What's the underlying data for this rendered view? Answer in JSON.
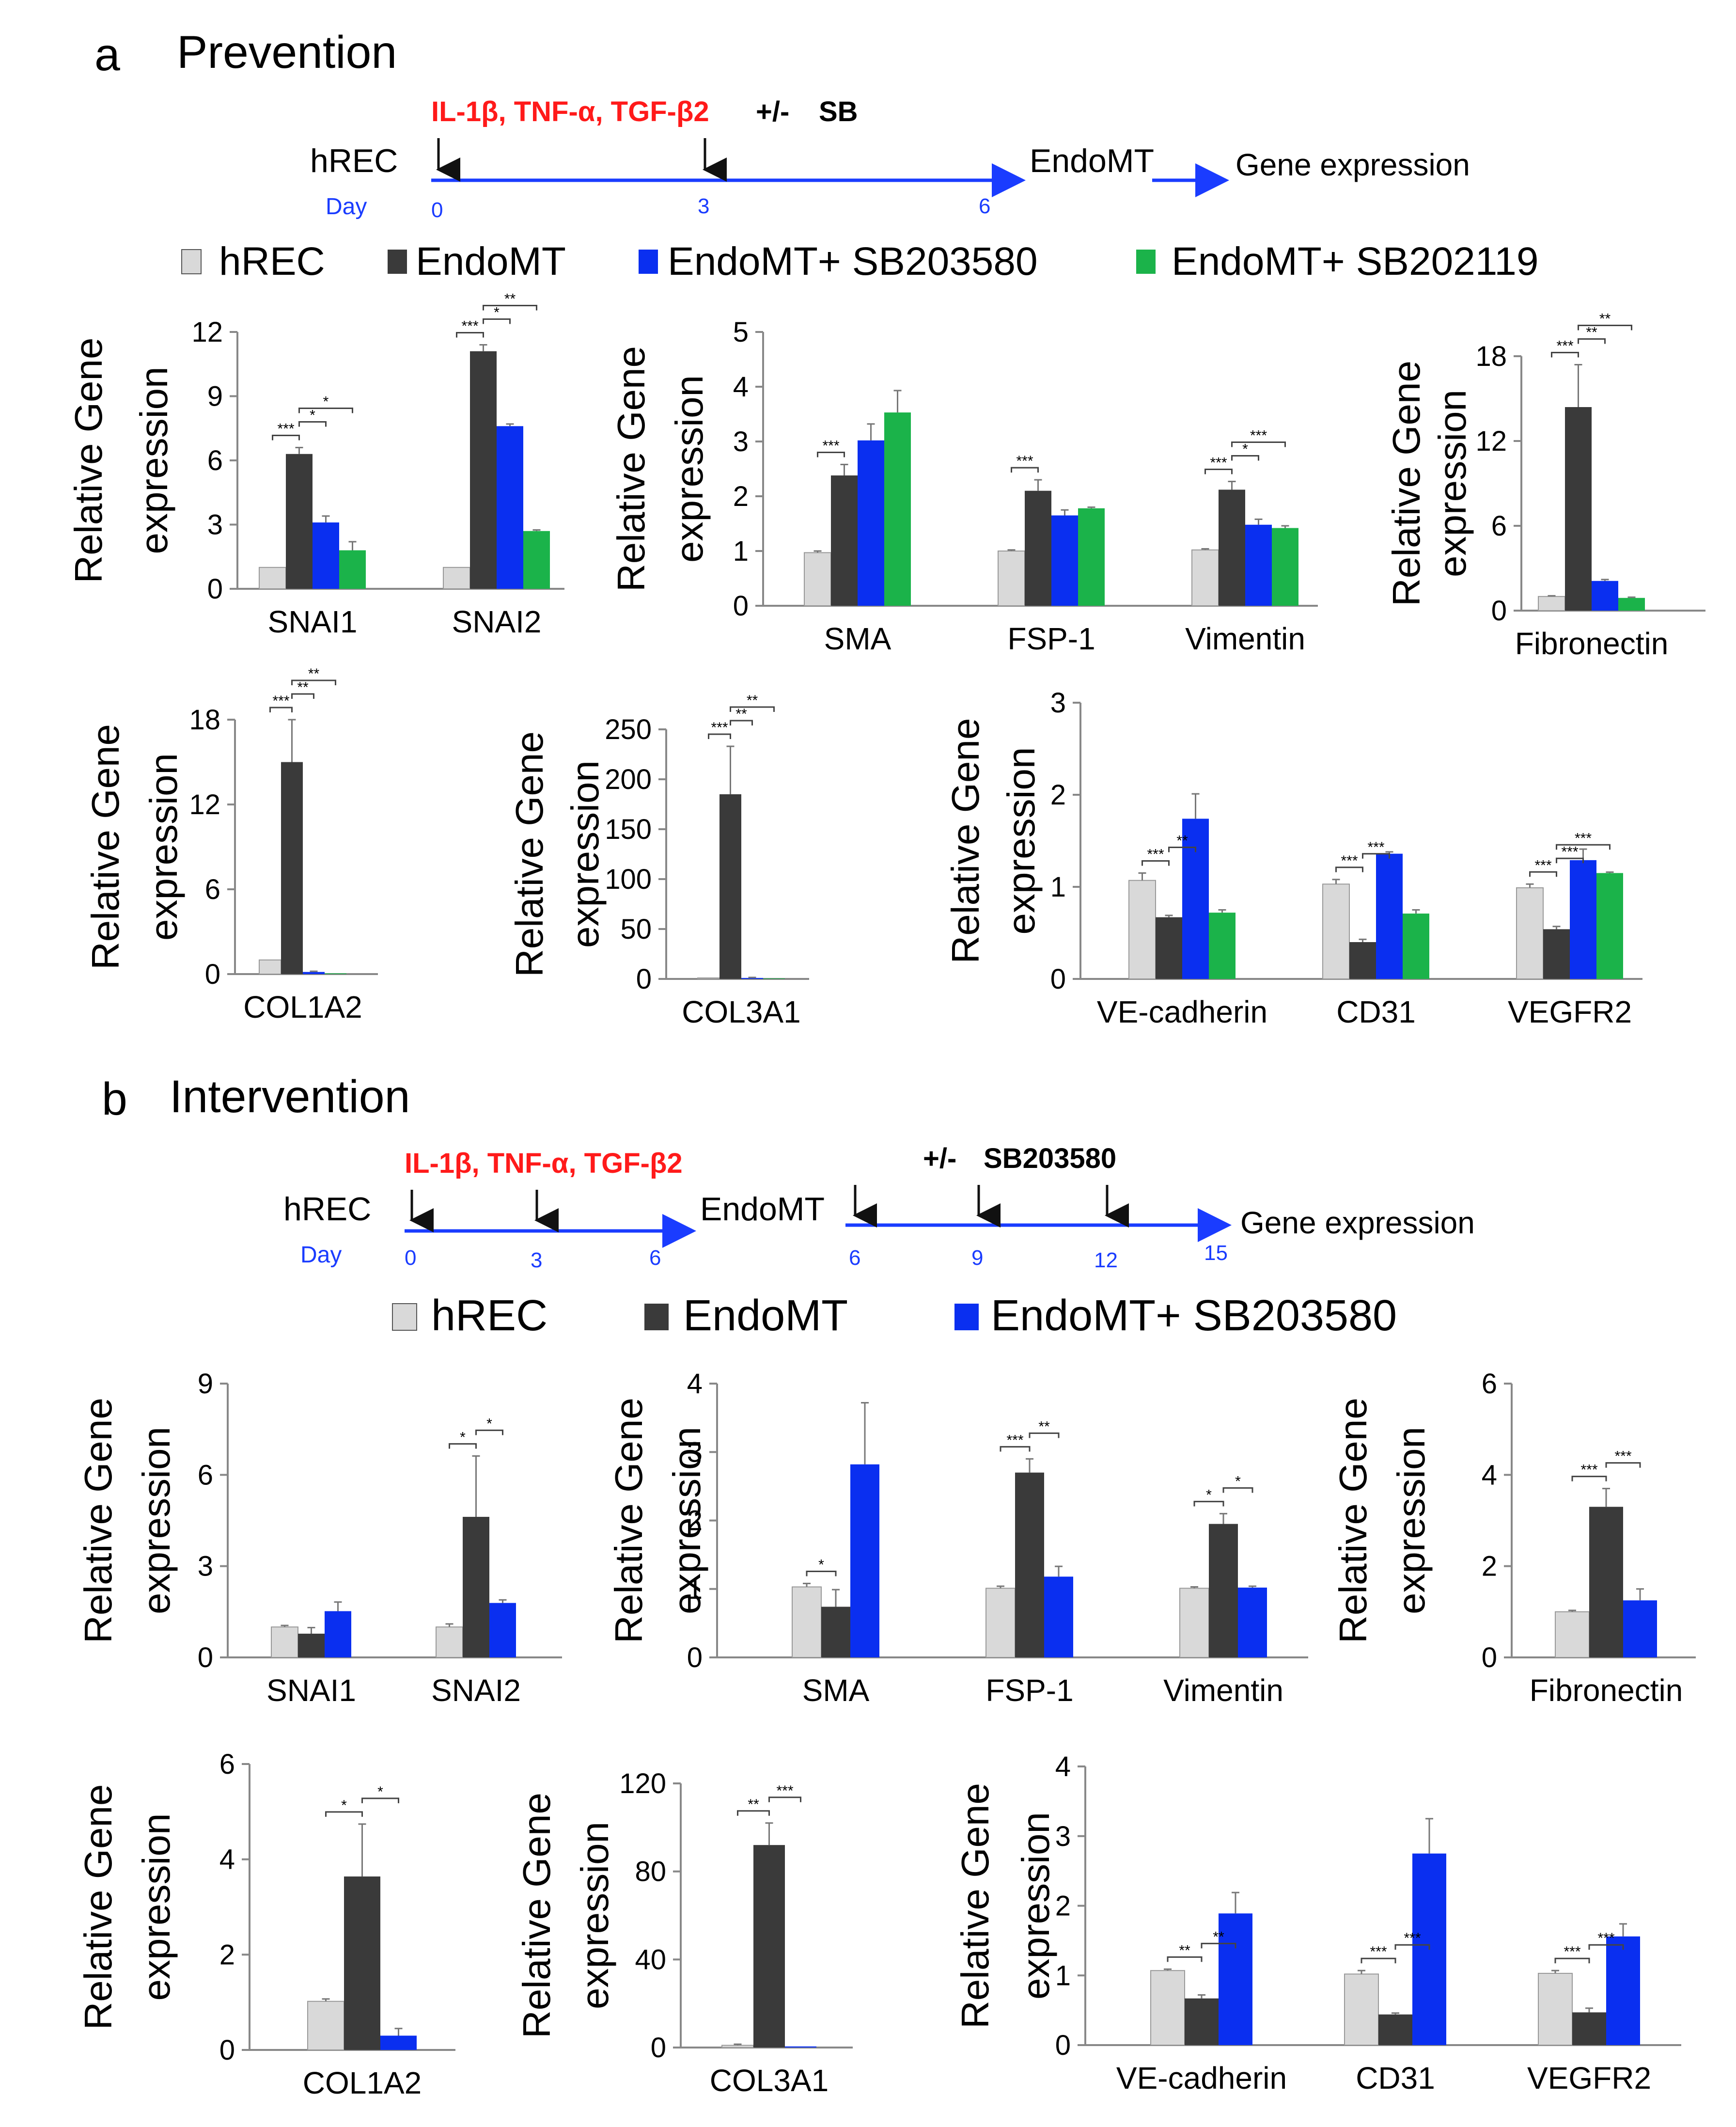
{
  "colors": {
    "hrec": "#d9d9d9",
    "endomt": "#3a3a3a",
    "sb203580": "#0a2ff0",
    "sb202119": "#1bb34a",
    "red": "#ff1a1a",
    "blue": "#1a3cff"
  },
  "panel_a": {
    "letter": "a",
    "title": "Prevention",
    "timeline": {
      "cell": "hREC",
      "day_label": "Day",
      "treatment": "IL-1β, TNF-α, TGF-β2",
      "plusminus": "+/-",
      "drug": "SB",
      "stage": "EndoMT",
      "readout": "Gene expression",
      "days": [
        "0",
        "3",
        "6"
      ]
    },
    "legend": [
      "hREC",
      "EndoMT",
      "EndoMT+ SB203580",
      "EndoMT+ SB202119"
    ]
  },
  "panel_b": {
    "letter": "b",
    "title": "Intervention",
    "timeline": {
      "cell": "hREC",
      "day_label": "Day",
      "treatment": "IL-1β, TNF-α, TGF-β2",
      "plusminus": "+/-",
      "drug": "SB203580",
      "stage": "EndoMT",
      "readout": "Gene expression",
      "days": [
        "0",
        "3",
        "6",
        "6",
        "9",
        "12",
        "15"
      ]
    },
    "legend": [
      "hREC",
      "EndoMT",
      "EndoMT+ SB203580"
    ]
  },
  "chart_data": [
    {
      "id": "a1",
      "type": "bar",
      "panel": "a",
      "ylabel": "Relative Gene expression",
      "ylim": [
        0,
        12
      ],
      "yticks": [
        0,
        3,
        6,
        9,
        12
      ],
      "categories": [
        "SNAI1",
        "SNAI2"
      ],
      "series": [
        {
          "name": "hREC",
          "values": [
            1.0,
            1.0
          ],
          "err": [
            0,
            0
          ]
        },
        {
          "name": "EndoMT",
          "values": [
            6.3,
            11.1
          ],
          "err": [
            0.3,
            0.3
          ]
        },
        {
          "name": "EndoMT+ SB203580",
          "values": [
            3.1,
            7.6
          ],
          "err": [
            0.3,
            0.1
          ]
        },
        {
          "name": "EndoMT+ SB202119",
          "values": [
            1.8,
            2.7
          ],
          "err": [
            0.4,
            0.05
          ]
        }
      ],
      "sig": [
        [
          "***",
          "*",
          "*"
        ],
        [
          "***",
          "*",
          "**"
        ]
      ]
    },
    {
      "id": "a2",
      "type": "bar",
      "panel": "a",
      "ylabel": "Relative Gene expression",
      "ylim": [
        0,
        5
      ],
      "yticks": [
        0,
        1,
        2,
        3,
        4,
        5
      ],
      "categories": [
        "SMA",
        "FSP-1",
        "Vimentin"
      ],
      "series": [
        {
          "name": "hREC",
          "values": [
            0.97,
            1.0,
            1.02
          ],
          "err": [
            0.03,
            0.02,
            0.02
          ]
        },
        {
          "name": "EndoMT",
          "values": [
            2.38,
            2.1,
            2.12
          ],
          "err": [
            0.2,
            0.2,
            0.15
          ]
        },
        {
          "name": "EndoMT+ SB203580",
          "values": [
            3.02,
            1.65,
            1.48
          ],
          "err": [
            0.3,
            0.1,
            0.1
          ]
        },
        {
          "name": "EndoMT+ SB202119",
          "values": [
            3.53,
            1.78,
            1.42
          ],
          "err": [
            0.4,
            0.02,
            0.04
          ]
        }
      ],
      "sig": [
        [
          "***"
        ],
        [
          "***"
        ],
        [
          "***",
          "*",
          "***"
        ]
      ]
    },
    {
      "id": "a3",
      "type": "bar",
      "panel": "a",
      "ylabel": "Relative Gene expression",
      "ylim": [
        0,
        18
      ],
      "yticks": [
        0,
        6,
        12,
        18
      ],
      "categories": [
        "Fibronectin"
      ],
      "series": [
        {
          "name": "hREC",
          "values": [
            1.0
          ],
          "err": [
            0.05
          ]
        },
        {
          "name": "EndoMT",
          "values": [
            14.4
          ],
          "err": [
            3.0
          ]
        },
        {
          "name": "EndoMT+ SB203580",
          "values": [
            2.1
          ],
          "err": [
            0.1
          ]
        },
        {
          "name": "EndoMT+ SB202119",
          "values": [
            0.9
          ],
          "err": [
            0.05
          ]
        }
      ],
      "sig": [
        [
          "***",
          "**",
          "**"
        ]
      ]
    },
    {
      "id": "a4",
      "type": "bar",
      "panel": "a",
      "ylabel": "Relative Gene expression",
      "ylim": [
        0,
        18
      ],
      "yticks": [
        0,
        6,
        12,
        18
      ],
      "categories": [
        "COL1A2"
      ],
      "series": [
        {
          "name": "hREC",
          "values": [
            1.0
          ],
          "err": [
            0
          ]
        },
        {
          "name": "EndoMT",
          "values": [
            15.0
          ],
          "err": [
            3.0
          ]
        },
        {
          "name": "EndoMT+ SB203580",
          "values": [
            0.15
          ],
          "err": [
            0.05
          ]
        },
        {
          "name": "EndoMT+ SB202119",
          "values": [
            0.05
          ],
          "err": [
            0
          ]
        }
      ],
      "sig": [
        [
          "***",
          "**",
          "**"
        ]
      ]
    },
    {
      "id": "a5",
      "type": "bar",
      "panel": "a",
      "ylabel": "Relative Gene expression",
      "ylim": [
        0,
        250
      ],
      "yticks": [
        0,
        50,
        100,
        150,
        200,
        250
      ],
      "categories": [
        "COL3A1"
      ],
      "series": [
        {
          "name": "hREC",
          "values": [
            1.0
          ],
          "err": [
            0
          ]
        },
        {
          "name": "EndoMT",
          "values": [
            185
          ],
          "err": [
            48
          ]
        },
        {
          "name": "EndoMT+ SB203580",
          "values": [
            1.0
          ],
          "err": [
            0.5
          ]
        },
        {
          "name": "EndoMT+ SB202119",
          "values": [
            0.5
          ],
          "err": [
            0
          ]
        }
      ],
      "sig": [
        [
          "***",
          "**",
          "**"
        ]
      ]
    },
    {
      "id": "a6",
      "type": "bar",
      "panel": "a",
      "ylabel": "Relative Gene expression",
      "ylim": [
        0,
        3
      ],
      "yticks": [
        0,
        1,
        2,
        3
      ],
      "categories": [
        "VE-cadherin",
        "CD31",
        "VEGFR2"
      ],
      "series": [
        {
          "name": "hREC",
          "values": [
            1.07,
            1.03,
            0.99
          ],
          "err": [
            0.08,
            0.05,
            0.04
          ]
        },
        {
          "name": "EndoMT",
          "values": [
            0.67,
            0.4,
            0.54
          ],
          "err": [
            0.02,
            0.03,
            0.03
          ]
        },
        {
          "name": "EndoMT+ SB203580",
          "values": [
            1.74,
            1.36,
            1.29
          ],
          "err": [
            0.27,
            0.02,
            0.12
          ]
        },
        {
          "name": "EndoMT+ SB202119",
          "values": [
            0.72,
            0.71,
            1.15
          ],
          "err": [
            0.03,
            0.04,
            0.01
          ]
        }
      ],
      "sig": [
        [
          "***",
          "**"
        ],
        [
          "***",
          "***"
        ],
        [
          "***",
          "***",
          "***"
        ]
      ]
    },
    {
      "id": "b1",
      "type": "bar",
      "panel": "b",
      "ylabel": "Relative Gene expression",
      "ylim": [
        0,
        9
      ],
      "yticks": [
        0,
        3,
        6,
        9
      ],
      "categories": [
        "SNAI1",
        "SNAI2"
      ],
      "series": [
        {
          "name": "hREC",
          "values": [
            1.0,
            1.0
          ],
          "err": [
            0.05,
            0.1
          ]
        },
        {
          "name": "EndoMT",
          "values": [
            0.78,
            4.62
          ],
          "err": [
            0.2,
            2.0
          ]
        },
        {
          "name": "EndoMT+ SB203580",
          "values": [
            1.52,
            1.79
          ],
          "err": [
            0.3,
            0.1
          ]
        }
      ],
      "sig": [
        [],
        [
          "*",
          "*"
        ]
      ]
    },
    {
      "id": "b2",
      "type": "bar",
      "panel": "b",
      "ylabel": "Relative Gene expression",
      "ylim": [
        0,
        4
      ],
      "yticks": [
        0,
        1,
        2,
        3,
        4
      ],
      "categories": [
        "SMA",
        "FSP-1",
        "Vimentin"
      ],
      "series": [
        {
          "name": "hREC",
          "values": [
            1.03,
            1.01,
            1.01
          ],
          "err": [
            0.05,
            0.03,
            0.02
          ]
        },
        {
          "name": "EndoMT",
          "values": [
            0.74,
            2.7,
            1.95
          ],
          "err": [
            0.25,
            0.2,
            0.15
          ]
        },
        {
          "name": "EndoMT+ SB203580",
          "values": [
            2.82,
            1.18,
            1.02
          ],
          "err": [
            0.9,
            0.15,
            0.02
          ]
        }
      ],
      "sig": [
        [
          "*"
        ],
        [
          "***",
          "**"
        ],
        [
          "*",
          "*"
        ]
      ]
    },
    {
      "id": "b3",
      "type": "bar",
      "panel": "b",
      "ylabel": "Relative Gene expression",
      "ylim": [
        0,
        6
      ],
      "yticks": [
        0,
        2,
        4,
        6
      ],
      "categories": [
        "Fibronectin"
      ],
      "series": [
        {
          "name": "hREC",
          "values": [
            1.0
          ],
          "err": [
            0.03
          ]
        },
        {
          "name": "EndoMT",
          "values": [
            3.3
          ],
          "err": [
            0.4
          ]
        },
        {
          "name": "EndoMT+ SB203580",
          "values": [
            1.25
          ],
          "err": [
            0.25
          ]
        }
      ],
      "sig": [
        [
          "***",
          "***"
        ]
      ]
    },
    {
      "id": "b4",
      "type": "bar",
      "panel": "b",
      "ylabel": "Relative Gene expression",
      "ylim": [
        0,
        6
      ],
      "yticks": [
        0,
        2,
        4,
        6
      ],
      "categories": [
        "COL1A2"
      ],
      "series": [
        {
          "name": "hREC",
          "values": [
            1.02
          ],
          "err": [
            0.05
          ]
        },
        {
          "name": "EndoMT",
          "values": [
            3.64
          ],
          "err": [
            1.1
          ]
        },
        {
          "name": "EndoMT+ SB203580",
          "values": [
            0.3
          ],
          "err": [
            0.15
          ]
        }
      ],
      "sig": [
        [
          "*",
          "*"
        ]
      ]
    },
    {
      "id": "b5",
      "type": "bar",
      "panel": "b",
      "ylabel": "Relative Gene expression",
      "ylim": [
        0,
        120
      ],
      "yticks": [
        0,
        40,
        80,
        120
      ],
      "categories": [
        "COL3A1"
      ],
      "series": [
        {
          "name": "hREC",
          "values": [
            1.0
          ],
          "err": [
            0.5
          ]
        },
        {
          "name": "EndoMT",
          "values": [
            92
          ],
          "err": [
            10
          ]
        },
        {
          "name": "EndoMT+ SB203580",
          "values": [
            0.5
          ],
          "err": [
            0
          ]
        }
      ],
      "sig": [
        [
          "**",
          "***"
        ]
      ]
    },
    {
      "id": "b6",
      "type": "bar",
      "panel": "b",
      "ylabel": "Relative Gene expression",
      "ylim": [
        0,
        4
      ],
      "yticks": [
        0,
        1,
        2,
        3,
        4
      ],
      "categories": [
        "VE-cadherin",
        "CD31",
        "VEGFR2"
      ],
      "series": [
        {
          "name": "hREC",
          "values": [
            1.07,
            1.02,
            1.03
          ],
          "err": [
            0.02,
            0.05,
            0.04
          ]
        },
        {
          "name": "EndoMT",
          "values": [
            0.67,
            0.44,
            0.47
          ],
          "err": [
            0.05,
            0.02,
            0.06
          ]
        },
        {
          "name": "EndoMT+ SB203580",
          "values": [
            1.89,
            2.75,
            1.56
          ],
          "err": [
            0.3,
            0.5,
            0.18
          ]
        }
      ],
      "sig": [
        [
          "**",
          "**"
        ],
        [
          "***",
          "***"
        ],
        [
          "***",
          "***"
        ]
      ]
    }
  ]
}
